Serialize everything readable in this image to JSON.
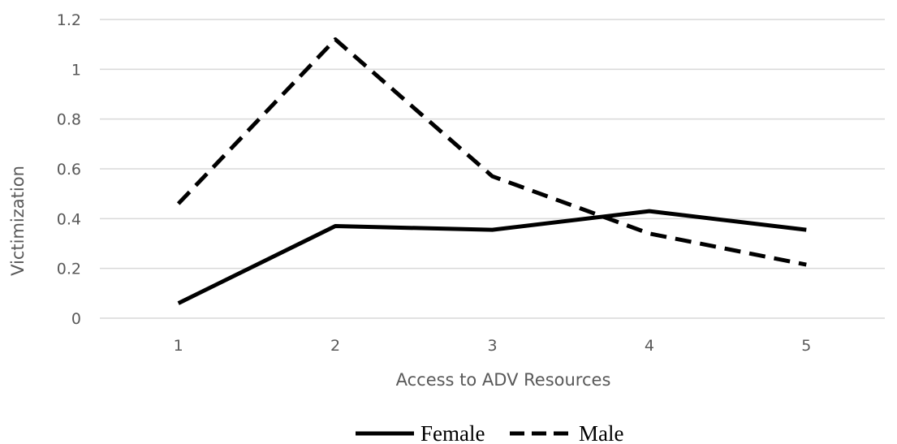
{
  "chart_data": {
    "type": "line",
    "title": "",
    "xlabel": "Access to ADV Resources",
    "ylabel": "Victimization",
    "categories": [
      "1",
      "2",
      "3",
      "4",
      "5"
    ],
    "ylim": [
      0,
      1.2
    ],
    "yticks": [
      "0",
      "0.2",
      "0.4",
      "0.6",
      "0.8",
      "1",
      "1.2"
    ],
    "grid": true,
    "legend_position": "bottom",
    "series": [
      {
        "name": "Female",
        "values": [
          0.06,
          0.37,
          0.355,
          0.43,
          0.355
        ],
        "style": "solid",
        "color": "#000000"
      },
      {
        "name": "Male",
        "values": [
          0.46,
          1.12,
          0.57,
          0.34,
          0.215
        ],
        "style": "dashed",
        "color": "#000000"
      }
    ],
    "gridline_color": "#d9d9d9",
    "tick_color": "#595959"
  }
}
